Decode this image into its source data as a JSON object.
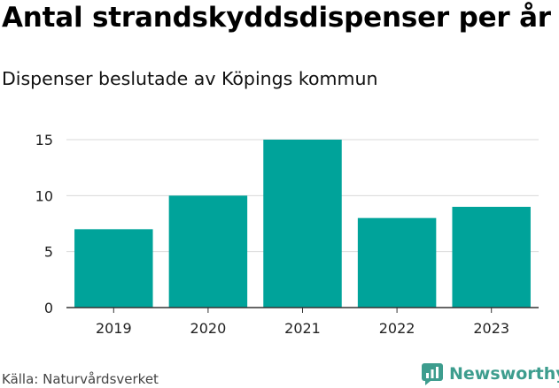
{
  "title": "Antal strandskyddsdispenser per år",
  "subtitle": "Dispenser beslutade av Köpings kommun",
  "source": "Källa: Naturvårdsverket",
  "brand": "Newsworthy",
  "colors": {
    "bar": "#00a39a",
    "grid": "#d9d9d9",
    "axis": "#333333",
    "brand": "#3d9d8e"
  },
  "chart_data": {
    "type": "bar",
    "categories": [
      "2019",
      "2020",
      "2021",
      "2022",
      "2023"
    ],
    "values": [
      7,
      10,
      15,
      8,
      9
    ],
    "yticks": [
      0,
      5,
      10,
      15
    ],
    "ylim": [
      0,
      15
    ],
    "grid": true,
    "title": "Antal strandskyddsdispenser per år",
    "xlabel": "",
    "ylabel": ""
  }
}
